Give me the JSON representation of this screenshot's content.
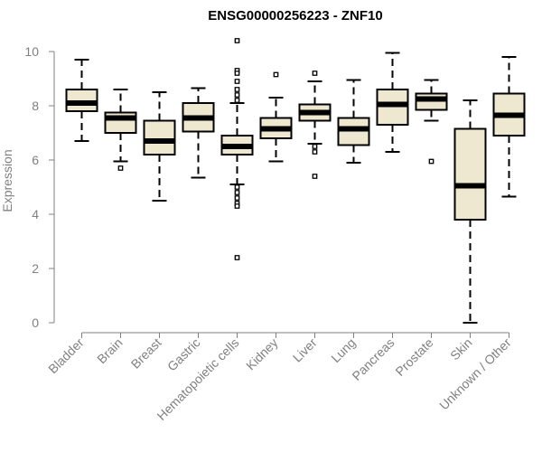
{
  "chart_data": {
    "type": "boxplot",
    "title": "ENSG00000256223 - ZNF10",
    "xlabel": "",
    "ylabel": "Expression",
    "ylim": [
      0,
      10.5
    ],
    "yticks": [
      0,
      2,
      4,
      6,
      8,
      10
    ],
    "grid": false,
    "legend": "none",
    "box_fill": "#efe8d0",
    "categories": [
      "Bladder",
      "Brain",
      "Breast",
      "Gastric",
      "Hematopoietic cells",
      "Kidney",
      "Liver",
      "Lung",
      "Pancreas",
      "Prostate",
      "Skin",
      "Unknown / Other"
    ],
    "boxes": [
      {
        "min": 6.7,
        "q1": 7.8,
        "median": 8.1,
        "q3": 8.6,
        "max": 9.7,
        "outliers": []
      },
      {
        "min": 5.95,
        "q1": 7.0,
        "median": 7.55,
        "q3": 7.75,
        "max": 8.6,
        "outliers": [
          5.7
        ]
      },
      {
        "min": 4.5,
        "q1": 6.2,
        "median": 6.7,
        "q3": 7.45,
        "max": 8.5,
        "outliers": []
      },
      {
        "min": 5.35,
        "q1": 7.05,
        "median": 7.55,
        "q3": 8.1,
        "max": 8.65,
        "outliers": []
      },
      {
        "min": 5.1,
        "q1": 6.2,
        "median": 6.5,
        "q3": 6.9,
        "max": 8.1,
        "outliers": [
          10.4,
          9.3,
          9.2,
          8.9,
          8.6,
          8.4,
          8.2,
          5.0,
          4.8,
          4.6,
          4.4,
          4.3,
          2.4
        ]
      },
      {
        "min": 5.95,
        "q1": 6.8,
        "median": 7.15,
        "q3": 7.55,
        "max": 8.3,
        "outliers": [
          9.15
        ]
      },
      {
        "min": 6.6,
        "q1": 7.45,
        "median": 7.75,
        "q3": 8.05,
        "max": 8.9,
        "outliers": [
          9.2,
          6.5,
          6.3,
          5.4
        ]
      },
      {
        "min": 5.9,
        "q1": 6.55,
        "median": 7.15,
        "q3": 7.55,
        "max": 8.95,
        "outliers": []
      },
      {
        "min": 6.3,
        "q1": 7.3,
        "median": 8.05,
        "q3": 8.6,
        "max": 9.95,
        "outliers": []
      },
      {
        "min": 7.45,
        "q1": 7.85,
        "median": 8.25,
        "q3": 8.45,
        "max": 8.95,
        "outliers": [
          5.95
        ]
      },
      {
        "min": 0.0,
        "q1": 3.8,
        "median": 5.05,
        "q3": 7.15,
        "max": 8.2,
        "outliers": []
      },
      {
        "min": 4.65,
        "q1": 6.9,
        "median": 7.65,
        "q3": 8.45,
        "max": 9.8,
        "outliers": []
      }
    ]
  }
}
